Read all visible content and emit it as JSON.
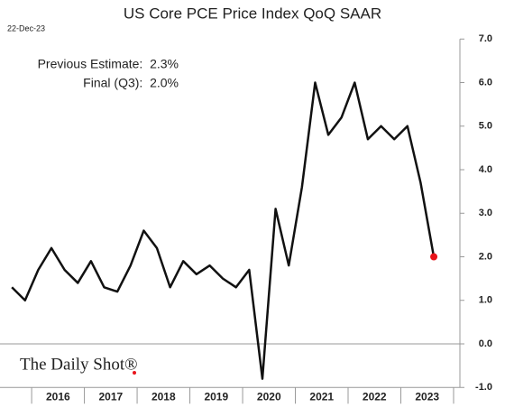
{
  "chart_data": {
    "type": "line",
    "title": "US Core PCE Price Index QoQ SAAR",
    "date": "22-Dec-23",
    "annotations": [
      "Previous Estimate:  2.3%",
      "Final (Q3):  2.0%"
    ],
    "source": "The Daily Shot®",
    "x": [
      2015.625,
      2015.875,
      2016.125,
      2016.375,
      2016.625,
      2016.875,
      2017.125,
      2017.375,
      2017.625,
      2017.875,
      2018.125,
      2018.375,
      2018.625,
      2018.875,
      2019.125,
      2019.375,
      2019.625,
      2019.875,
      2020.125,
      2020.375,
      2020.625,
      2020.875,
      2021.125,
      2021.375,
      2021.625,
      2021.875,
      2022.125,
      2022.375,
      2022.625,
      2022.875,
      2023.125,
      2023.375,
      2023.625
    ],
    "series": [
      {
        "name": "Core PCE QoQ SAAR",
        "color": "#111111",
        "values": [
          1.3,
          1.0,
          1.7,
          2.2,
          1.7,
          1.4,
          1.9,
          1.3,
          1.2,
          1.8,
          2.6,
          2.2,
          1.3,
          1.9,
          1.6,
          1.8,
          1.5,
          1.3,
          1.7,
          -0.8,
          3.1,
          1.8,
          3.6,
          6.0,
          4.8,
          5.2,
          6.0,
          4.7,
          5.0,
          4.7,
          5.0,
          3.7,
          2.0
        ]
      }
    ],
    "highlight_color": "#e8141b",
    "xlim": [
      2015.4,
      2024.12
    ],
    "xticks": [
      {
        "value": 2016.5,
        "label": "2016"
      },
      {
        "value": 2017.5,
        "label": "2017"
      },
      {
        "value": 2018.5,
        "label": "2018"
      },
      {
        "value": 2019.5,
        "label": "2019"
      },
      {
        "value": 2020.5,
        "label": "2020"
      },
      {
        "value": 2021.5,
        "label": "2021"
      },
      {
        "value": 2022.5,
        "label": "2022"
      },
      {
        "value": 2023.5,
        "label": "2023"
      }
    ],
    "xseparators": [
      2016,
      2017,
      2018,
      2019,
      2020,
      2021,
      2022,
      2023,
      2024
    ],
    "ylim": [
      -1,
      7
    ],
    "yticks": [
      {
        "value": -1,
        "label": "-1.0"
      },
      {
        "value": 0,
        "label": "0.0"
      },
      {
        "value": 1,
        "label": "1.0"
      },
      {
        "value": 2,
        "label": "2.0"
      },
      {
        "value": 3,
        "label": "3.0"
      },
      {
        "value": 4,
        "label": "4.0"
      },
      {
        "value": 5,
        "label": "5.0"
      },
      {
        "value": 6,
        "label": "6.0"
      },
      {
        "value": 7,
        "label": "7.0"
      }
    ]
  }
}
